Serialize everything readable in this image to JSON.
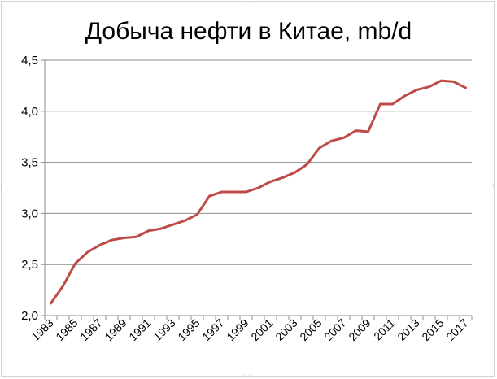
{
  "chart_data": {
    "type": "line",
    "title": "Добыча нефти в Китае, mb/d",
    "xlabel": "",
    "ylabel": "",
    "ylim": [
      2.0,
      4.5
    ],
    "yticks": [
      "2,0",
      "2,5",
      "3,0",
      "3,5",
      "4,0",
      "4,5"
    ],
    "ytick_values": [
      2.0,
      2.5,
      3.0,
      3.5,
      4.0,
      4.5
    ],
    "xticks": [
      "1983",
      "1985",
      "1987",
      "1989",
      "1991",
      "1993",
      "1995",
      "1997",
      "1999",
      "2001",
      "2003",
      "2005",
      "2007",
      "2009",
      "2011",
      "2013",
      "2015",
      "2017"
    ],
    "x": [
      1983,
      1984,
      1985,
      1986,
      1987,
      1988,
      1989,
      1990,
      1991,
      1992,
      1993,
      1994,
      1995,
      1996,
      1997,
      1998,
      1999,
      2000,
      2001,
      2002,
      2003,
      2004,
      2005,
      2006,
      2007,
      2008,
      2009,
      2010,
      2011,
      2012,
      2013,
      2014,
      2015,
      2016,
      2017
    ],
    "series": [
      {
        "values": [
          2.12,
          2.29,
          2.51,
          2.62,
          2.69,
          2.74,
          2.76,
          2.77,
          2.83,
          2.85,
          2.89,
          2.93,
          2.99,
          3.17,
          3.21,
          3.21,
          3.21,
          3.25,
          3.31,
          3.35,
          3.4,
          3.48,
          3.64,
          3.71,
          3.74,
          3.81,
          3.8,
          4.07,
          4.07,
          4.15,
          4.21,
          4.24,
          4.3,
          4.29,
          4.23
        ],
        "color": "#be4b48"
      }
    ],
    "grid": true,
    "legend": "none"
  }
}
